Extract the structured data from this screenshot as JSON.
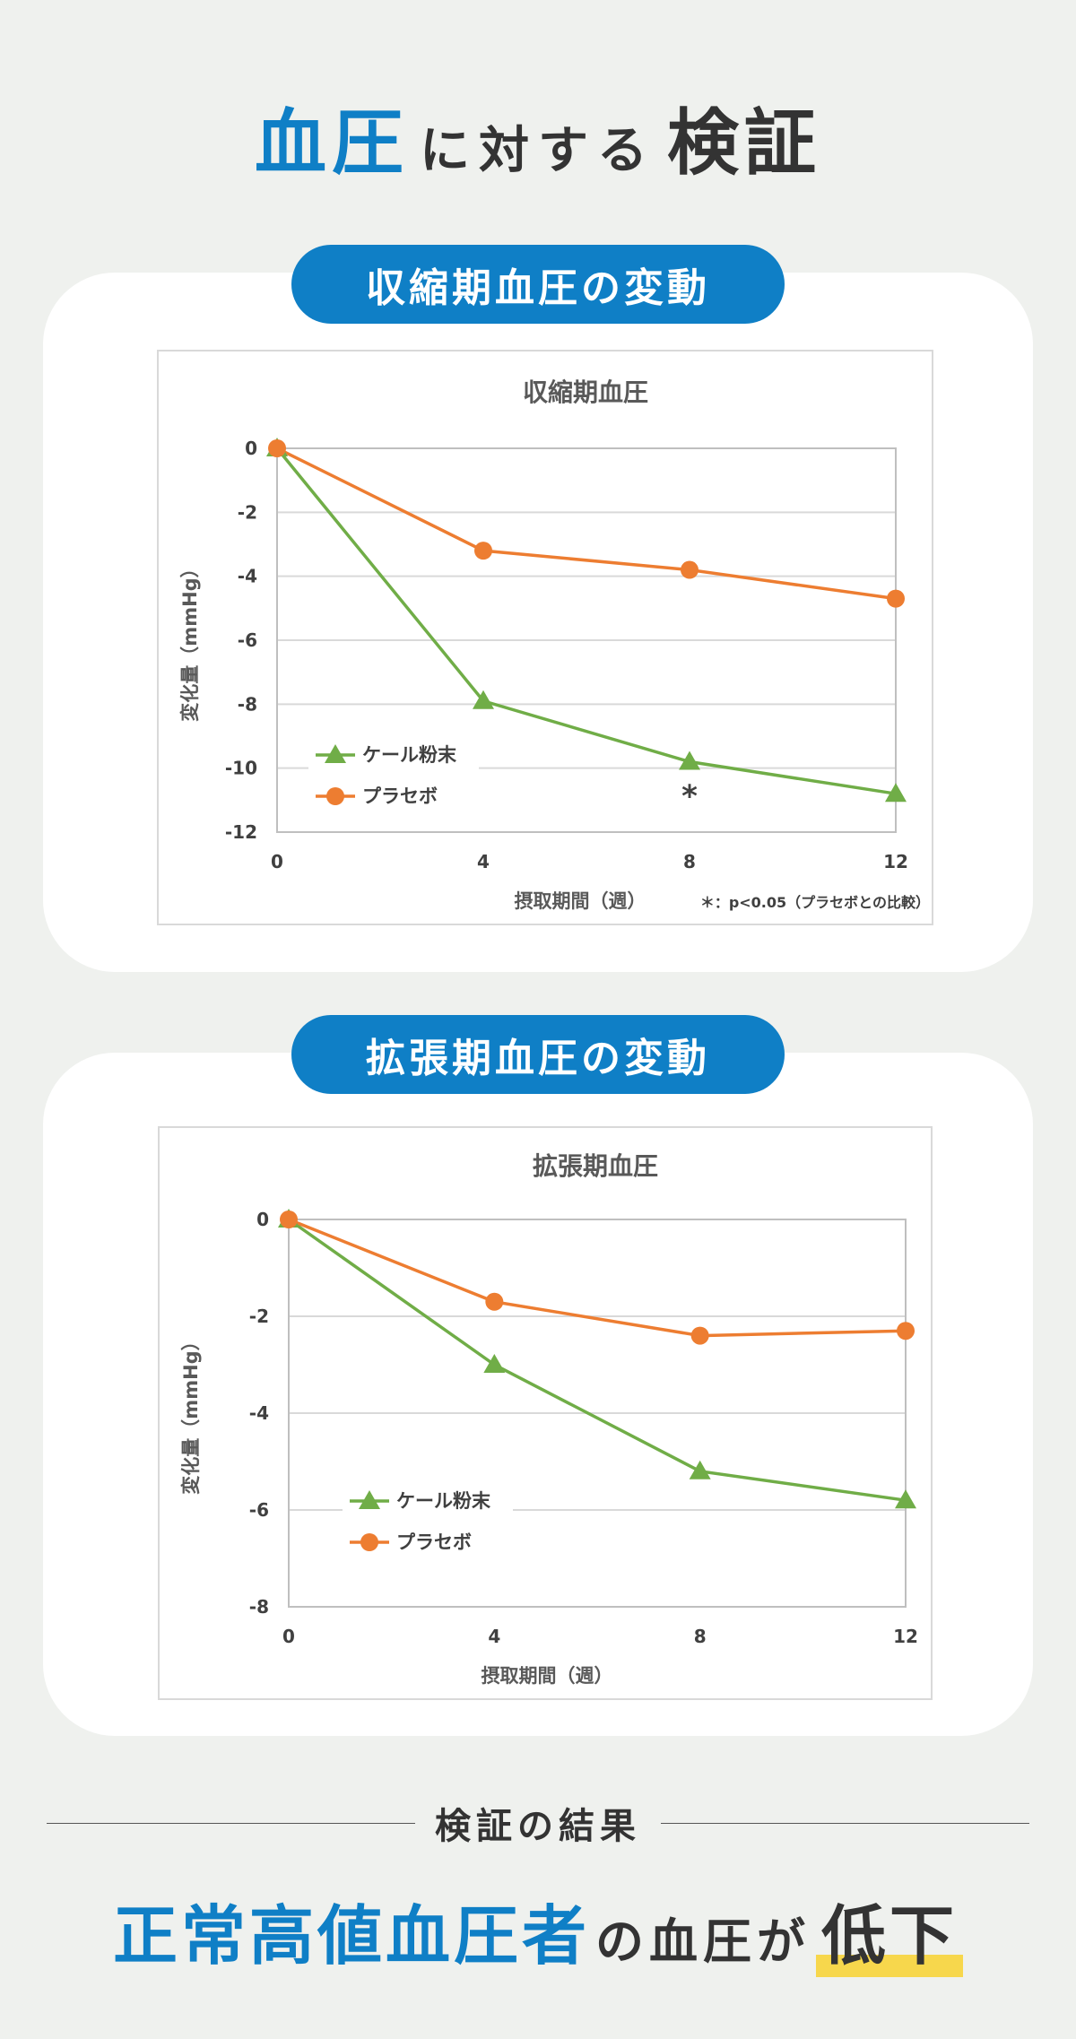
{
  "header": {
    "title_a": "血圧",
    "title_b": "に対する",
    "title_c": "検証"
  },
  "section1": {
    "heading": "収縮期血圧の変動"
  },
  "section2": {
    "heading": "拡張期血圧の変動"
  },
  "chart_data": [
    {
      "type": "line",
      "title": "収縮期血圧",
      "xlabel": "摂取期間（週）",
      "ylabel": "変化量（mmHg）",
      "x": [
        0,
        4,
        8,
        12
      ],
      "ylim": [
        -12,
        0
      ],
      "yticks": [
        0,
        -2,
        -4,
        -6,
        -8,
        -10,
        -12
      ],
      "grid": true,
      "legend": "bottom-left",
      "series": [
        {
          "name": "ケール粉末",
          "values": [
            0,
            -7.9,
            -9.8,
            -10.8
          ],
          "color": "#70ad47",
          "marker": "triangle"
        },
        {
          "name": "プラセボ",
          "values": [
            0,
            -3.2,
            -3.8,
            -4.7
          ],
          "color": "#ed7d31",
          "marker": "circle"
        }
      ],
      "annotation": {
        "x": 8,
        "y": -10.7,
        "text": "*"
      },
      "footnote": "＊：p<0.05（プラセボとの比較）"
    },
    {
      "type": "line",
      "title": "拡張期血圧",
      "xlabel": "摂取期間（週）",
      "ylabel": "変化量（mmHg）",
      "x": [
        0,
        4,
        8,
        12
      ],
      "ylim": [
        -8,
        0
      ],
      "yticks": [
        0,
        -2,
        -4,
        -6,
        -8
      ],
      "grid": true,
      "legend": "bottom-left",
      "series": [
        {
          "name": "ケール粉末",
          "values": [
            0,
            -3.0,
            -5.2,
            -5.8
          ],
          "color": "#70ad47",
          "marker": "triangle"
        },
        {
          "name": "プラセボ",
          "values": [
            0,
            -1.7,
            -2.4,
            -2.3
          ],
          "color": "#ed7d31",
          "marker": "circle"
        }
      ]
    }
  ],
  "result": {
    "divider_label": "検証の結果",
    "part1": "正常高値血圧者",
    "part2": "の血圧が",
    "part3": "低下"
  }
}
